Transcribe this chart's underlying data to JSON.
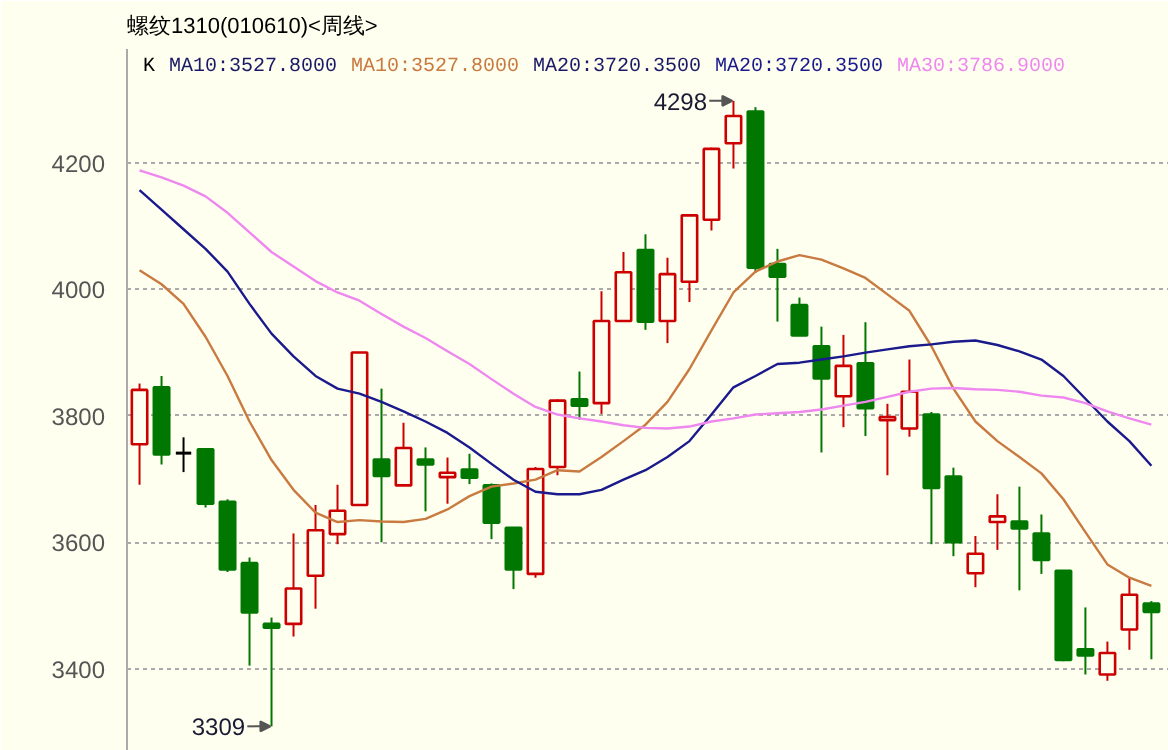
{
  "chart_data": {
    "type": "candlestick",
    "title": "螺纹1310(010610)<周线>",
    "categories": [
      null,
      null,
      null,
      null,
      null,
      null,
      null,
      null,
      null,
      null,
      null,
      null,
      null,
      null,
      null,
      null,
      null,
      null,
      null,
      null,
      null,
      null,
      null,
      null,
      null,
      null,
      null,
      null,
      null,
      null,
      null,
      null,
      null,
      null,
      null,
      null,
      null,
      null,
      null,
      null,
      null,
      null,
      null,
      null,
      null,
      null,
      null
    ],
    "ohlc": [
      [
        3755,
        3851,
        3691,
        3841
      ],
      [
        3845,
        3863,
        3723,
        3739
      ],
      [
        3741,
        3766,
        3711,
        3741
      ],
      [
        3747,
        3749,
        3655,
        3661
      ],
      [
        3664,
        3668,
        3553,
        3557
      ],
      [
        3567,
        3576,
        3405,
        3489
      ],
      [
        3471,
        3481,
        3309,
        3465
      ],
      [
        3471,
        3614,
        3451,
        3527
      ],
      [
        3547,
        3659,
        3495,
        3619
      ],
      [
        3613,
        3691,
        3597,
        3650
      ],
      [
        3659,
        3900,
        3659,
        3900
      ],
      [
        3731,
        3843,
        3600,
        3705
      ],
      [
        3690,
        3789,
        3690,
        3749
      ],
      [
        3731,
        3750,
        3649,
        3723
      ],
      [
        3703,
        3734,
        3661,
        3710
      ],
      [
        3715,
        3740,
        3692,
        3702
      ],
      [
        3690,
        3693,
        3605,
        3631
      ],
      [
        3623,
        3623,
        3526,
        3557
      ],
      [
        3550,
        3719,
        3544,
        3716
      ],
      [
        3719,
        3826,
        3706,
        3824
      ],
      [
        3826,
        3870,
        3794,
        3816
      ],
      [
        3820,
        3997,
        3803,
        3950
      ],
      [
        3950,
        4059,
        3950,
        4027
      ],
      [
        4062,
        4087,
        3936,
        3949
      ],
      [
        3950,
        4050,
        3915,
        4024
      ],
      [
        4012,
        4117,
        3980,
        4117
      ],
      [
        4110,
        4224,
        4093,
        4222
      ],
      [
        4231,
        4298,
        4191,
        4274
      ],
      [
        4281,
        4288,
        4026,
        4034
      ],
      [
        4040,
        4064,
        3949,
        4020
      ],
      [
        3975,
        3987,
        3927,
        3927
      ],
      [
        3910,
        3941,
        3742,
        3859
      ],
      [
        3831,
        3928,
        3782,
        3879
      ],
      [
        3883,
        3948,
        3768,
        3812
      ],
      [
        3793,
        3819,
        3706,
        3798
      ],
      [
        3780,
        3889,
        3767,
        3838
      ],
      [
        3802,
        3806,
        3597,
        3686
      ],
      [
        3704,
        3718,
        3578,
        3600
      ],
      [
        3551,
        3610,
        3529,
        3582
      ],
      [
        3632,
        3676,
        3588,
        3641
      ],
      [
        3633,
        3688,
        3524,
        3622
      ],
      [
        3614,
        3644,
        3550,
        3572
      ],
      [
        3555,
        3555,
        3412,
        3414
      ],
      [
        3431,
        3497,
        3391,
        3421
      ],
      [
        3391,
        3443,
        3381,
        3425
      ],
      [
        3462,
        3545,
        3430,
        3517
      ],
      [
        3503,
        3507,
        3415,
        3490
      ]
    ],
    "series": [
      {
        "name": "MA10:3527.8000",
        "type": "line",
        "color": "#c87a40",
        "values": [
          4030,
          4008,
          3977,
          3925,
          3863,
          3791,
          3730,
          3683,
          3647,
          3632,
          3635,
          3633,
          3632,
          3637,
          3652,
          3673,
          3688,
          3693,
          3699,
          3714,
          3712,
          3735,
          3760,
          3786,
          3822,
          3874,
          3935,
          3995,
          4028,
          4044,
          4054,
          4047,
          4033,
          4018,
          3992,
          3966,
          3910,
          3843,
          3791,
          3760,
          3735,
          3709,
          3668,
          3616,
          3565,
          3544,
          3531
        ]
      },
      {
        "name": "MA20:3720.3500",
        "type": "line",
        "color": "#1a1a8c",
        "values": [
          4157,
          4126,
          4095,
          4064,
          4028,
          3977,
          3930,
          3894,
          3863,
          3843,
          3835,
          3822,
          3807,
          3791,
          3773,
          3750,
          3724,
          3699,
          3680,
          3676,
          3676,
          3683,
          3699,
          3714,
          3735,
          3760,
          3802,
          3845,
          3863,
          3882,
          3884,
          3889,
          3894,
          3900,
          3905,
          3910,
          3913,
          3917,
          3919,
          3912,
          3902,
          3889,
          3863,
          3827,
          3791,
          3760,
          3721
        ]
      },
      {
        "name": "MA30:3786.9000",
        "type": "line",
        "color": "#ee88ee",
        "values": [
          4188,
          4177,
          4164,
          4147,
          4121,
          4090,
          4059,
          4036,
          4013,
          3995,
          3982,
          3961,
          3941,
          3923,
          3902,
          3882,
          3858,
          3835,
          3814,
          3802,
          3796,
          3791,
          3785,
          3781,
          3780,
          3783,
          3791,
          3796,
          3802,
          3804,
          3806,
          3810,
          3816,
          3822,
          3830,
          3838,
          3843,
          3844,
          3842,
          3841,
          3838,
          3832,
          3829,
          3820,
          3807,
          3796,
          3786
        ]
      }
    ],
    "annotations": [
      "K",
      "MA10:3527.8000",
      "MA20:3720.3500",
      "4298",
      "3309"
    ],
    "ylim": [
      3270,
      4380
    ],
    "yticks": [
      3400,
      3600,
      3800,
      4000,
      4200
    ],
    "grid": "y",
    "legend": "top",
    "tick_labels": "y"
  }
}
